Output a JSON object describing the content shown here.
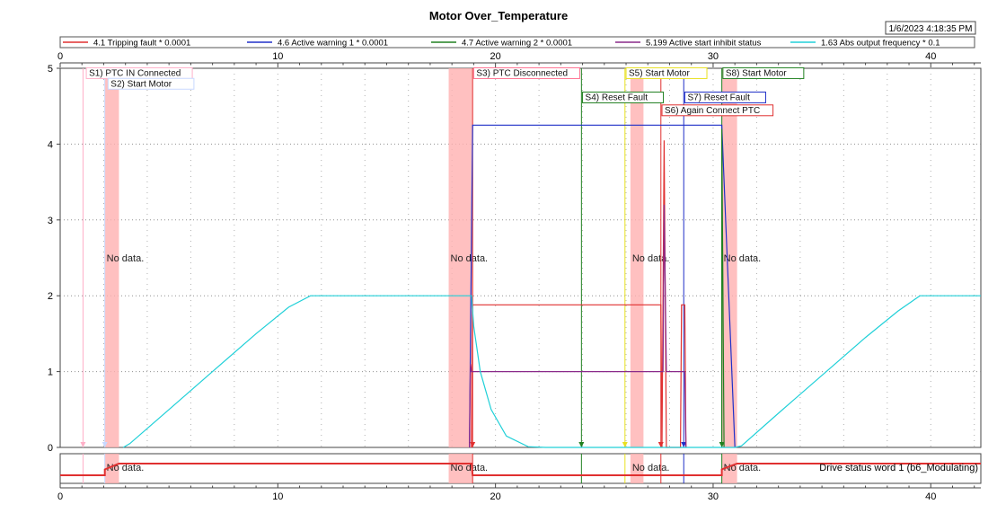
{
  "chart_data": {
    "type": "line",
    "title": "Motor Over_Temperature",
    "timestamp": "1/6/2023 4:18:35 PM",
    "xlim": [
      0,
      42.3
    ],
    "ylim": [
      0,
      5
    ],
    "x_ticks": [
      0,
      10,
      20,
      30,
      40
    ],
    "y_ticks": [
      0,
      1,
      2,
      3,
      4,
      5
    ],
    "grid": true,
    "legend_position": "top",
    "series": [
      {
        "name": "4.1 Tripping fault * 0.0001",
        "color": "#e03030",
        "points": [
          [
            18.9,
            0
          ],
          [
            18.95,
            1.88
          ],
          [
            27.6,
            1.88
          ],
          [
            27.65,
            0
          ],
          [
            27.75,
            4.05
          ],
          [
            27.85,
            0
          ],
          [
            28.5,
            0
          ],
          [
            28.55,
            1.88
          ],
          [
            28.7,
            1.88
          ],
          [
            28.75,
            0
          ]
        ]
      },
      {
        "name": "4.6 Active warning 1 * 0.0001",
        "color": "#2030c8",
        "points": [
          [
            18.8,
            0
          ],
          [
            18.95,
            4.25
          ],
          [
            30.4,
            4.25
          ],
          [
            31.0,
            0
          ]
        ]
      },
      {
        "name": "4.7 Active warning 2 * 0.0001",
        "color": "#208020",
        "points": [
          [
            30.4,
            0
          ],
          [
            30.4,
            4.2
          ],
          [
            30.5,
            0
          ]
        ]
      },
      {
        "name": "5.199 Active start inhibit status",
        "color": "#8a2a8a",
        "points": [
          [
            18.8,
            0
          ],
          [
            18.85,
            1.1
          ],
          [
            18.9,
            1.0
          ],
          [
            27.7,
            1.0
          ],
          [
            27.75,
            3.2
          ],
          [
            27.85,
            1.0
          ],
          [
            28.7,
            1.0
          ],
          [
            28.75,
            0
          ]
        ]
      },
      {
        "name": "1.63 Abs output frequency * 0.1",
        "color": "#20d0d8",
        "points": [
          [
            2.9,
            0
          ],
          [
            3.2,
            0.05
          ],
          [
            5,
            0.5
          ],
          [
            7,
            1.0
          ],
          [
            9,
            1.5
          ],
          [
            10.5,
            1.85
          ],
          [
            11.5,
            2.0
          ],
          [
            12,
            2.0
          ],
          [
            18.9,
            2.0
          ],
          [
            19.0,
            1.6
          ],
          [
            19.3,
            1.0
          ],
          [
            19.8,
            0.5
          ],
          [
            20.5,
            0.15
          ],
          [
            21.5,
            0.01
          ],
          [
            22.3,
            0
          ],
          [
            31.0,
            0
          ],
          [
            31.3,
            0.02
          ],
          [
            33,
            0.45
          ],
          [
            35,
            0.95
          ],
          [
            37,
            1.45
          ],
          [
            38.5,
            1.8
          ],
          [
            39.5,
            2.0
          ],
          [
            42.3,
            2.0
          ]
        ]
      }
    ],
    "nodata_bands": [
      {
        "x0": 2.05,
        "x1": 2.7,
        "label": "No data."
      },
      {
        "x0": 17.85,
        "x1": 18.95,
        "label": "No data."
      },
      {
        "x0": 26.2,
        "x1": 26.8,
        "label": "No data."
      },
      {
        "x0": 30.4,
        "x1": 31.1,
        "label": "No data."
      }
    ],
    "nodata_label_y": 2.5,
    "event_lines": [
      {
        "x": 1.05,
        "color": "#ffb0c8"
      },
      {
        "x": 2.05,
        "color": "#c8d8ff"
      },
      {
        "x": 18.95,
        "color": "#e03030"
      },
      {
        "x": 23.95,
        "color": "#208020"
      },
      {
        "x": 25.95,
        "color": "#e8e020"
      },
      {
        "x": 27.6,
        "color": "#e03030"
      },
      {
        "x": 28.65,
        "color": "#2030c8"
      },
      {
        "x": 30.4,
        "color": "#208020"
      }
    ],
    "annotations": [
      {
        "text": "S1) PTC IN Connected",
        "x": 1.2,
        "y": 4.9,
        "color": "#ffb0c8"
      },
      {
        "text": "S2)  Start Motor",
        "x": 2.2,
        "y": 4.76,
        "color": "#c8d8ff"
      },
      {
        "text": "S3) PTC Disconnected",
        "x": 19.0,
        "y": 4.9,
        "color": "#ff7090"
      },
      {
        "text": "S4) Reset Fault",
        "x": 24.0,
        "y": 4.58,
        "color": "#208020"
      },
      {
        "text": "S5) Start Motor",
        "x": 26.0,
        "y": 4.9,
        "color": "#e8e020"
      },
      {
        "text": "S6) Again Connect PTC",
        "x": 27.65,
        "y": 4.41,
        "color": "#e03030"
      },
      {
        "text": "S7) Reset Fault",
        "x": 28.7,
        "y": 4.58,
        "color": "#2030c8"
      },
      {
        "text": "S8) Start Motor",
        "x": 30.45,
        "y": 4.9,
        "color": "#208020"
      }
    ],
    "status_panel": {
      "label": "Drive status word 1 (b6_Modulating)",
      "color": "#e03030",
      "nodata_label": "No data.",
      "points": [
        [
          0,
          0
        ],
        [
          2.05,
          0
        ],
        [
          2.05,
          0.5
        ],
        [
          2.7,
          1
        ],
        [
          18.9,
          1
        ],
        [
          18.95,
          0
        ],
        [
          30.4,
          0
        ],
        [
          30.4,
          0.5
        ],
        [
          31.1,
          1
        ],
        [
          42.3,
          1
        ]
      ]
    }
  }
}
